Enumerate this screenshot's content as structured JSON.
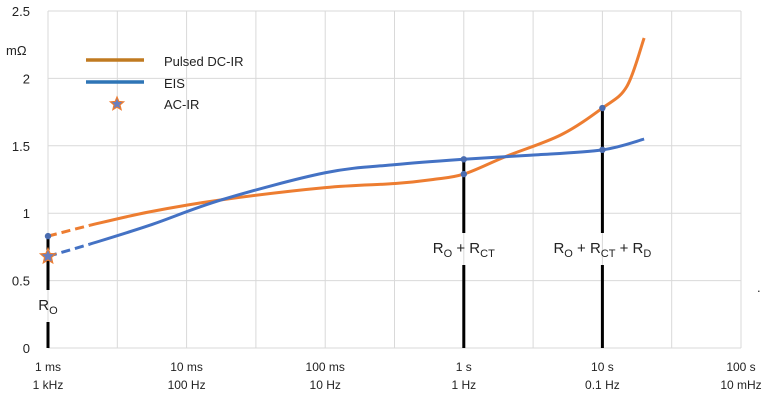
{
  "chart_data": {
    "type": "line",
    "title": "",
    "ylabel": "mΩ",
    "xscale": "log",
    "xlim_seconds": [
      0.001,
      100
    ],
    "ylim": [
      0,
      2.5
    ],
    "yticks": [
      0,
      0.5,
      1,
      1.5,
      2,
      2.5
    ],
    "ytick_labels": [
      "0",
      "0.5",
      "1",
      "1.5",
      "2",
      "2.5"
    ],
    "xticks_seconds": [
      0.001,
      0.01,
      0.1,
      1,
      10,
      100
    ],
    "xtick_labels_time": [
      "1 ms",
      "10 ms",
      "100 ms",
      "1 s",
      "10 s",
      "100 s"
    ],
    "xtick_labels_freq": [
      "1 kHz",
      "100 Hz",
      "10 Hz",
      "1 Hz",
      "0.1 Hz",
      "10 mHz"
    ],
    "grid": true,
    "legend_placement": "top-left",
    "legend": [
      "Pulsed DC-IR",
      "EIS",
      "AC-IR"
    ],
    "colors": {
      "pulsed": "#ed7d31",
      "eis": "#4472c4",
      "star": "#6a7fbf",
      "star_edge": "#ed7d31",
      "marker": "#4a6cb0",
      "grid": "#d9d9d9",
      "annotation": "#000000"
    },
    "series": [
      {
        "name": "Pulsed DC-IR",
        "dashed_until_seconds": 0.002,
        "x": [
          0.001,
          0.002,
          0.0054,
          0.018,
          0.1,
          0.32,
          0.6,
          1,
          2,
          5,
          10,
          15,
          20
        ],
        "y": [
          0.83,
          0.91,
          1.01,
          1.1,
          1.19,
          1.22,
          1.25,
          1.29,
          1.42,
          1.58,
          1.78,
          1.94,
          2.3
        ]
      },
      {
        "name": "EIS",
        "dashed_until_seconds": 0.002,
        "x": [
          0.001,
          0.002,
          0.0054,
          0.018,
          0.1,
          0.32,
          1,
          3,
          10,
          20
        ],
        "y": [
          0.68,
          0.77,
          0.91,
          1.1,
          1.3,
          1.36,
          1.4,
          1.43,
          1.47,
          1.55
        ]
      }
    ],
    "acir_point": {
      "x": 0.001,
      "y": 0.68
    },
    "markers": [
      {
        "x": 0.001,
        "y": 0.83
      },
      {
        "x": 1,
        "y": 1.4
      },
      {
        "x": 1,
        "y": 1.29
      },
      {
        "x": 10,
        "y": 1.78
      },
      {
        "x": 10,
        "y": 1.47
      }
    ],
    "annotations": [
      {
        "x": 0.001,
        "top": 0.83,
        "parts": [
          [
            "R",
            ""
          ],
          [
            "O",
            "sub"
          ]
        ]
      },
      {
        "x": 1,
        "top": 1.4,
        "parts": [
          [
            "R",
            ""
          ],
          [
            "O",
            "sub"
          ],
          [
            " + R",
            ""
          ],
          [
            "CT",
            "sub"
          ]
        ]
      },
      {
        "x": 10,
        "top": 1.78,
        "parts": [
          [
            "R",
            ""
          ],
          [
            "O",
            "sub"
          ],
          [
            " + R",
            ""
          ],
          [
            "CT",
            "sub"
          ],
          [
            " + R",
            ""
          ],
          [
            "D",
            "sub"
          ]
        ]
      }
    ],
    "stray_mark": "."
  }
}
